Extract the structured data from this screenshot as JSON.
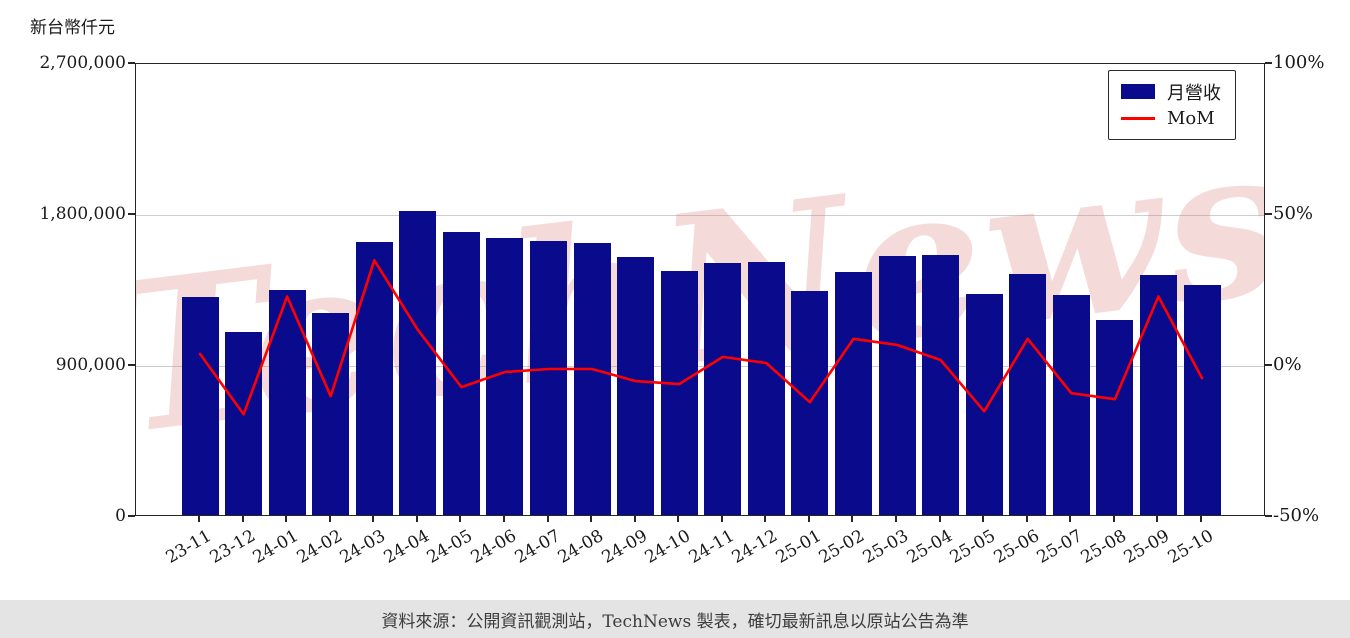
{
  "footer": {
    "text": "資料來源：公開資訊觀測站，TechNews 製表，確切最新訊息以原站公告為準"
  },
  "chart_data": {
    "type": "bar",
    "unit_label": "新台幣仟元",
    "watermark": "TechNews",
    "watermark_color": "#d98079",
    "categories": [
      "23-11",
      "23-12",
      "24-01",
      "24-02",
      "24-03",
      "24-04",
      "24-05",
      "24-06",
      "24-07",
      "24-08",
      "24-09",
      "24-10",
      "24-11",
      "24-12",
      "25-01",
      "25-02",
      "25-03",
      "25-04",
      "25-05",
      "25-06",
      "25-07",
      "25-08",
      "25-09",
      "25-10"
    ],
    "series": [
      {
        "name": "月營收",
        "type": "bar",
        "axis": "left",
        "color": "#0a0a8c",
        "values": [
          1300000,
          1090000,
          1340000,
          1205000,
          1625000,
          1815000,
          1690000,
          1650000,
          1635000,
          1620000,
          1540000,
          1455000,
          1505000,
          1510000,
          1335000,
          1450000,
          1545000,
          1550000,
          1320000,
          1435000,
          1310000,
          1160000,
          1430000,
          1370000
        ]
      },
      {
        "name": "MoM",
        "type": "line",
        "axis": "right",
        "color": "#ff0000",
        "values": [
          4,
          -16,
          23,
          -10,
          35,
          12,
          -7,
          -2,
          -1,
          -1,
          -5,
          -6,
          3,
          1,
          -12,
          9,
          7,
          2,
          -15,
          9,
          -9,
          -11,
          23,
          -4
        ]
      }
    ],
    "left_axis": {
      "min": 0,
      "max": 2700000,
      "ticks": [
        "2,700,000",
        "1,800,000",
        "900,000",
        "0"
      ]
    },
    "right_axis": {
      "min": -50,
      "max": 100,
      "ticks": [
        "100%",
        "50%",
        "0%",
        "-50%"
      ]
    },
    "legend_position": "top-right",
    "grid": "horizontal"
  }
}
